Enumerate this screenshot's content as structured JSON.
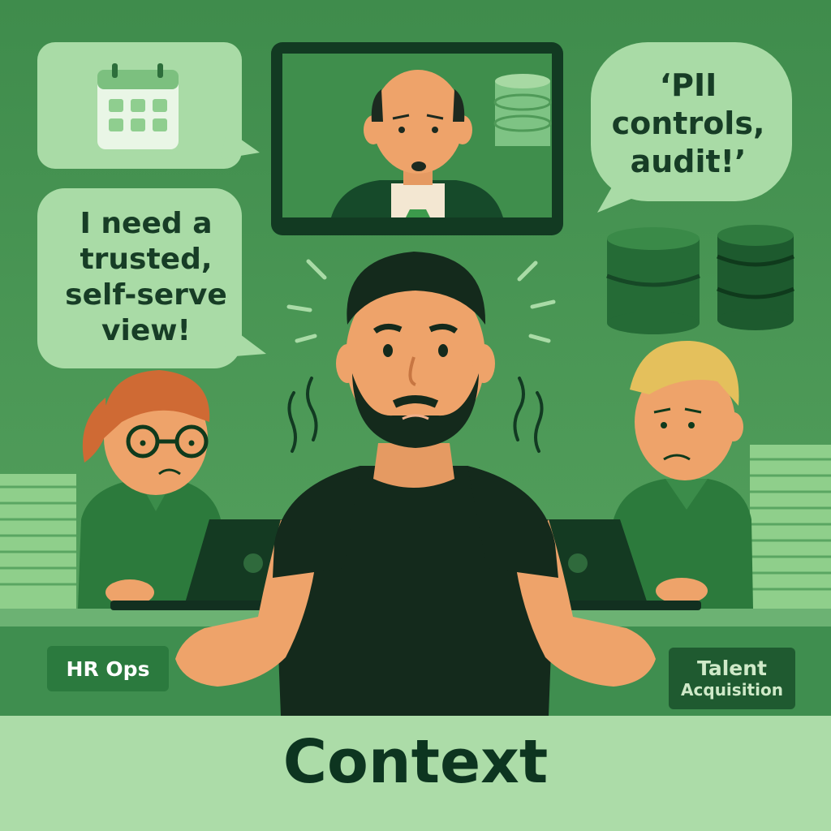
{
  "bubbles": {
    "top_left_icon": "calendar-icon",
    "top_right_quote": "‘PII\ncontrols,\naudit!’",
    "left_need": "I need a\ntrusted,\nself-serve\nview!"
  },
  "labels": {
    "hr_ops": "HR Ops",
    "talent_line1": "Talent",
    "talent_line2": "Acquisition"
  },
  "footer": {
    "title": "Context"
  },
  "colors": {
    "background": "#4e9a59",
    "bubble": "#a9dba6",
    "footer_bar": "#acdca8",
    "text_dark": "#0d3520",
    "shirt": "#142a1c",
    "skin": "#eea36a"
  }
}
